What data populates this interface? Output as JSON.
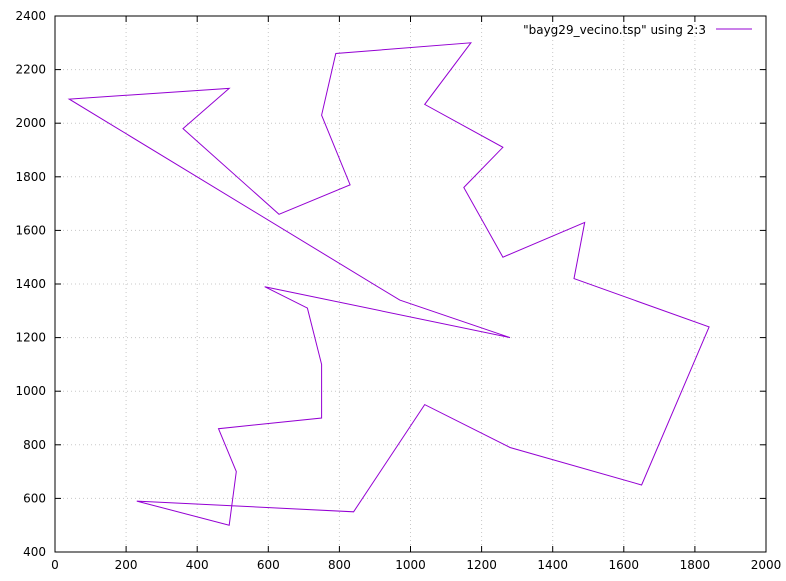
{
  "chart_data": {
    "type": "line",
    "title": "",
    "xlabel": "",
    "ylabel": "",
    "xlim": [
      0,
      2000
    ],
    "ylim": [
      400,
      2400
    ],
    "x_ticks": [
      0,
      200,
      400,
      600,
      800,
      1000,
      1200,
      1400,
      1600,
      1800,
      2000
    ],
    "y_ticks": [
      400,
      600,
      800,
      1000,
      1200,
      1400,
      1600,
      1800,
      2000,
      2200,
      2400
    ],
    "grid": true,
    "legend_position": "top-right",
    "series": [
      {
        "name": "\"bayg29_vecino.tsp\" using 2:3",
        "color": "#9400d3",
        "points": [
          [
            1280,
            1200
          ],
          [
            590,
            1390
          ],
          [
            710,
            1310
          ],
          [
            750,
            1100
          ],
          [
            750,
            900
          ],
          [
            460,
            860
          ],
          [
            510,
            700
          ],
          [
            490,
            500
          ],
          [
            230,
            590
          ],
          [
            840,
            550
          ],
          [
            1040,
            950
          ],
          [
            1280,
            790
          ],
          [
            1650,
            650
          ],
          [
            1840,
            1240
          ],
          [
            1460,
            1420
          ],
          [
            1490,
            1630
          ],
          [
            1260,
            1500
          ],
          [
            1150,
            1760
          ],
          [
            1260,
            1910
          ],
          [
            1040,
            2070
          ],
          [
            1170,
            2300
          ],
          [
            790,
            2260
          ],
          [
            750,
            2030
          ],
          [
            830,
            1770
          ],
          [
            630,
            1660
          ],
          [
            360,
            1980
          ],
          [
            490,
            2130
          ],
          [
            40,
            2090
          ],
          [
            970,
            1340
          ],
          [
            1280,
            1200
          ]
        ]
      }
    ]
  }
}
